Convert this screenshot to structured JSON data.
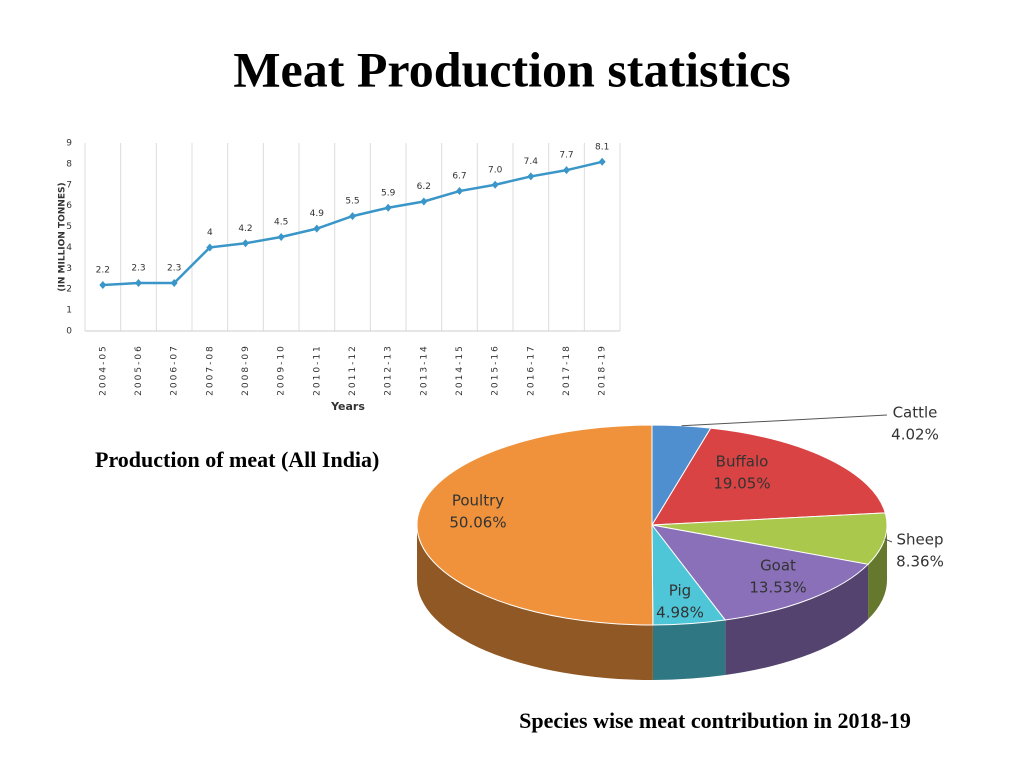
{
  "title": "Meat Production statistics",
  "chart_data": [
    {
      "type": "line",
      "title": "Production of meat (All India)",
      "x_label": "Years",
      "y_label": "(IN MILLION TONNES)",
      "categories": [
        "2004-05",
        "2005-06",
        "2006-07",
        "2007-08",
        "2008-09",
        "2009-10",
        "2010-11",
        "2011-12",
        "2012-13",
        "2013-14",
        "2014-15",
        "2015-16",
        "2016-17",
        "2017-18",
        "2018-19"
      ],
      "values": [
        2.2,
        2.3,
        2.3,
        4,
        4.2,
        4.5,
        4.9,
        5.5,
        5.9,
        6.2,
        6.7,
        7.0,
        7.4,
        7.7,
        8.1
      ],
      "value_labels": [
        "2.2",
        "2.3",
        "2.3",
        "4",
        "4.2",
        "4.5",
        "4.9",
        "5.5",
        "5.9",
        "6.2",
        "6.7",
        "7.0",
        "7.4",
        "7.7",
        "8.1"
      ],
      "color": "#3a96c8",
      "ylim": [
        0,
        9
      ],
      "yticks": [
        0,
        1,
        2,
        3,
        4,
        5,
        6,
        7,
        8,
        9
      ],
      "grid": "x"
    },
    {
      "type": "pie",
      "title": "Species wise meat contribution in 2018-19",
      "categories": [
        "Cattle",
        "Buffalo",
        "Sheep",
        "Goat",
        "Pig",
        "Poultry"
      ],
      "values": [
        4.02,
        19.05,
        8.36,
        13.53,
        4.98,
        50.06
      ],
      "value_labels": [
        "4.02%",
        "19.05%",
        "8.36%",
        "13.53%",
        "4.98%",
        "50.06%"
      ],
      "colors": [
        "#4f8fcf",
        "#d94343",
        "#a9c84c",
        "#8a70b8",
        "#4fc6d8",
        "#f0923c"
      ]
    }
  ]
}
